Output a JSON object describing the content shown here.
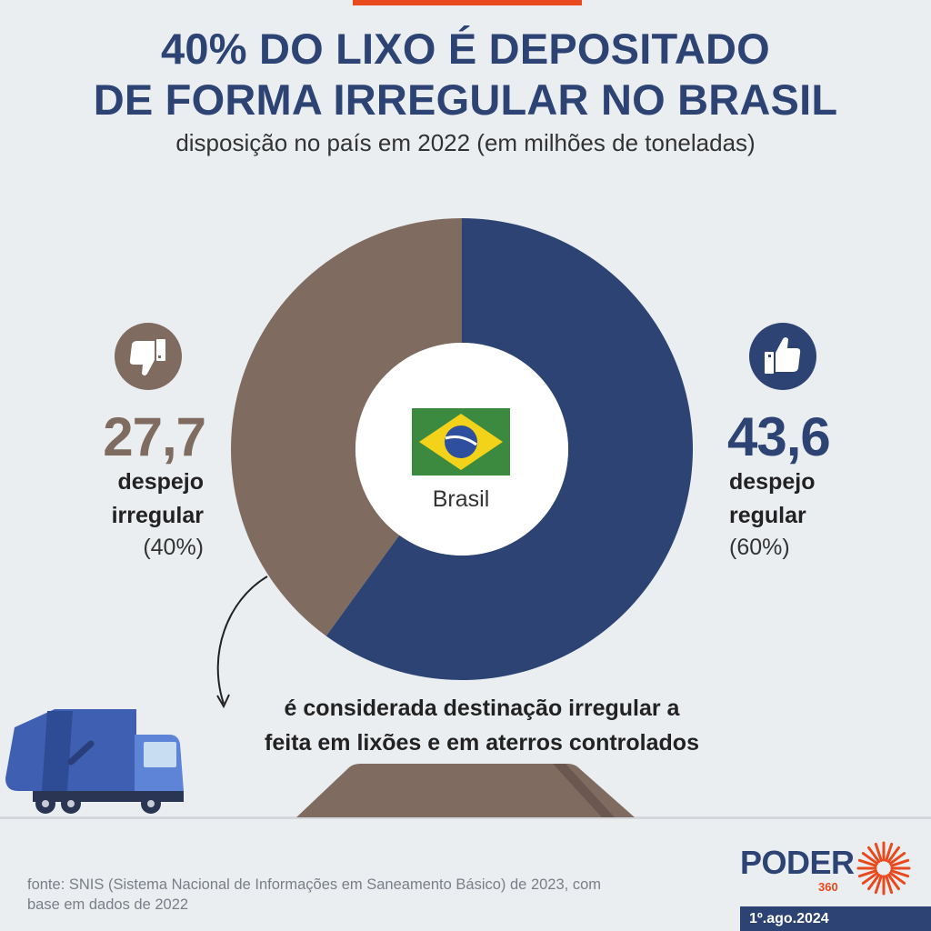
{
  "title_line1": "40% DO LIXO É DEPOSITADO",
  "title_line2": "DE FORMA IRREGULAR NO BRASIL",
  "subtitle": "disposição no país em 2022 (em milhões de toneladas)",
  "chart_data": {
    "type": "pie",
    "center_label": "Brasil",
    "slices": [
      {
        "label": "despejo regular",
        "value": 43.6,
        "value_text": "43,6",
        "percent": 60,
        "percent_text": "(60%)",
        "color": "#2c4374"
      },
      {
        "label": "despejo irregular",
        "value": 27.7,
        "value_text": "27,7",
        "percent": 40,
        "percent_text": "(40%)",
        "color": "#7f6b60"
      }
    ]
  },
  "labels": {
    "irregular_line1": "despejo",
    "irregular_line2": "irregular",
    "regular_line1": "despejo",
    "regular_line2": "regular"
  },
  "icons": {
    "irregular": "thumbs-down-icon",
    "regular": "thumbs-up-icon"
  },
  "note_line1": "é considerada destinação irregular a",
  "note_line2": "feita em lixões e em aterros controlados",
  "source_line1": "fonte: SNIS (Sistema Nacional de Informações em Saneamento Básico) de 2023, com",
  "source_line2": "base em dados de 2022",
  "brand": {
    "name": "PODER",
    "number": "360",
    "accent": "#e8491d",
    "primary": "#2c4374"
  },
  "date": "1º.ago.2024"
}
